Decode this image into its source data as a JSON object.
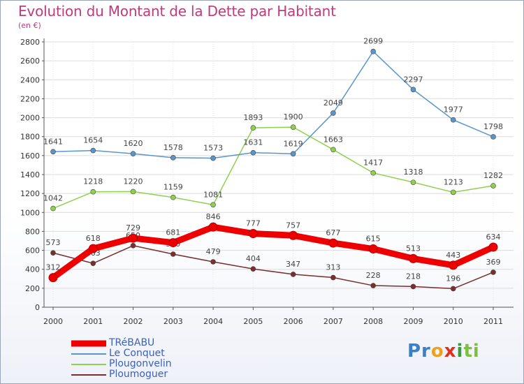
{
  "title": "Evolution du Montant de la Dette par Habitant",
  "subtitle": "(en €)",
  "logo_parts": [
    {
      "text": "Pr",
      "color": "#3a7fc9"
    },
    {
      "text": "o",
      "color": "#f0a020"
    },
    {
      "text": "x",
      "color": "#e03020"
    },
    {
      "text": "i",
      "color": "#3a9a3a"
    },
    {
      "text": "ti",
      "color": "#7fbf40"
    }
  ],
  "chart_data": {
    "type": "line",
    "title": "Evolution du Montant de la Dette par Habitant",
    "subtitle": "(en €)",
    "xlabel": "",
    "ylabel": "",
    "ylim": [
      0,
      2800
    ],
    "yticks": [
      0,
      200,
      400,
      600,
      800,
      1000,
      1200,
      1400,
      1600,
      1800,
      2000,
      2200,
      2400,
      2600,
      2800
    ],
    "grid": true,
    "legend_position": "bottom-left",
    "categories": [
      "2000",
      "2001",
      "2002",
      "2003",
      "2004",
      "2005",
      "2006",
      "2007",
      "2008",
      "2009",
      "2010",
      "2011"
    ],
    "series": [
      {
        "name": "TRéBABU",
        "color": "#ee0000",
        "values": [
          312,
          618,
          729,
          681,
          846,
          777,
          757,
          677,
          615,
          513,
          443,
          634
        ]
      },
      {
        "name": "Le Conquet",
        "color": "#5b96c8",
        "values": [
          1641,
          1654,
          1620,
          1578,
          1573,
          1631,
          1619,
          2049,
          2699,
          2297,
          1977,
          1798
        ]
      },
      {
        "name": "Plougonvelin",
        "color": "#8fd14f",
        "values": [
          1042,
          1218,
          1220,
          1159,
          1081,
          1893,
          1900,
          1663,
          1417,
          1318,
          1213,
          1282
        ]
      },
      {
        "name": "Ploumoguer",
        "color": "#7a2e2e",
        "values": [
          573,
          463,
          650,
          560,
          479,
          404,
          347,
          313,
          228,
          218,
          196,
          369
        ]
      }
    ]
  }
}
